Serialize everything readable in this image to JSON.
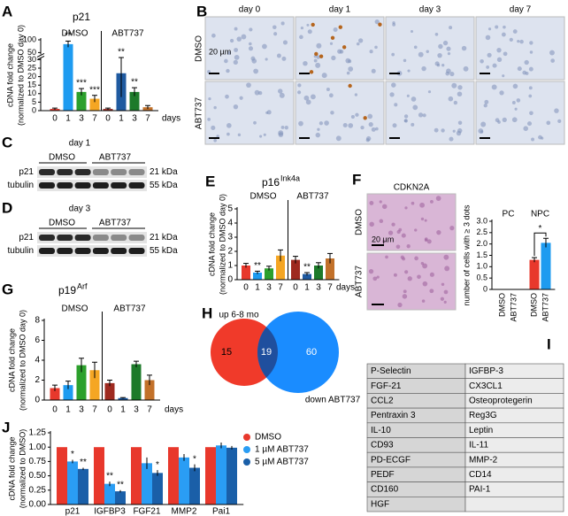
{
  "chart_data": [
    {
      "panel": "A",
      "type": "bar",
      "title": "p21",
      "ylabel": [
        "cDNA fold change",
        "(normalized to DMSO day 0)"
      ],
      "xlabel": "days",
      "ylim": [
        0,
        100
      ],
      "yticks": [
        0,
        5,
        10,
        15,
        20,
        25,
        30,
        50,
        100
      ],
      "axis_break": [
        30,
        50
      ],
      "groups": [
        {
          "name": "DMSO",
          "categories": [
            "0",
            "1",
            "3",
            "7"
          ],
          "colors": [
            "#e8382c",
            "#1e9bf0",
            "#2ca02c",
            "#f5a623"
          ],
          "values": [
            1,
            83,
            11,
            7
          ],
          "errors": [
            0.5,
            12,
            2,
            2
          ],
          "stars": [
            null,
            "**",
            "***",
            "***"
          ]
        },
        {
          "name": "ABT737",
          "categories": [
            "0",
            "1",
            "3",
            "7"
          ],
          "colors": [
            "#9e2a20",
            "#1f5aa0",
            "#1d7a2a",
            "#c2712a"
          ],
          "values": [
            1,
            22,
            11,
            2
          ],
          "errors": [
            0.5,
            14,
            2.5,
            1
          ],
          "stars": [
            null,
            "**",
            "**",
            null
          ]
        }
      ]
    },
    {
      "panel": "E",
      "type": "bar",
      "title": "p16",
      "title_sup": "Ink4a",
      "ylabel": [
        "cDNA fold change",
        "(normalized to DMSO day 0)"
      ],
      "xlabel": "days",
      "ylim": [
        0,
        5
      ],
      "yticks": [
        0,
        1,
        2,
        3,
        4,
        5
      ],
      "groups": [
        {
          "name": "DMSO",
          "categories": [
            "0",
            "1",
            "3",
            "7"
          ],
          "colors": [
            "#e8382c",
            "#1e9bf0",
            "#2ca02c",
            "#f5a623"
          ],
          "values": [
            1.0,
            0.5,
            0.8,
            1.7
          ],
          "errors": [
            0.15,
            0.1,
            0.15,
            0.4
          ],
          "stars": [
            null,
            "**",
            null,
            null
          ]
        },
        {
          "name": "ABT737",
          "categories": [
            "0",
            "1",
            "3",
            "7"
          ],
          "colors": [
            "#9e2a20",
            "#1f5aa0",
            "#1d7a2a",
            "#c2712a"
          ],
          "values": [
            1.4,
            0.4,
            1.0,
            1.5
          ],
          "errors": [
            0.25,
            0.1,
            0.2,
            0.35
          ],
          "stars": [
            null,
            "**",
            null,
            null
          ]
        }
      ]
    },
    {
      "panel": "G",
      "type": "bar",
      "title": "p19",
      "title_sup": "Arf",
      "ylabel": [
        "cDNA fold change",
        "(normalized to DMSO day 0)"
      ],
      "xlabel": "days",
      "ylim": [
        0,
        8
      ],
      "yticks": [
        0,
        2,
        4,
        6,
        8
      ],
      "groups": [
        {
          "name": "DMSO",
          "categories": [
            "0",
            "1",
            "3",
            "7"
          ],
          "colors": [
            "#e8382c",
            "#1e9bf0",
            "#2ca02c",
            "#f5a623"
          ],
          "values": [
            1.2,
            1.5,
            3.5,
            3.0
          ],
          "errors": [
            0.3,
            0.4,
            0.7,
            0.8
          ]
        },
        {
          "name": "ABT737",
          "categories": [
            "0",
            "1",
            "3",
            "7"
          ],
          "colors": [
            "#9e2a20",
            "#1f5aa0",
            "#1d7a2a",
            "#c2712a"
          ],
          "values": [
            1.7,
            0.2,
            3.6,
            2.0
          ],
          "errors": [
            0.3,
            0.05,
            0.3,
            0.5
          ]
        }
      ]
    },
    {
      "panel": "J",
      "type": "bar",
      "ylabel": [
        "cDNA fold change",
        "(normalized to DMSO)"
      ],
      "categories": [
        "p21",
        "IGFBP3",
        "FGF21",
        "MMP2",
        "Pai1"
      ],
      "ylim": [
        0,
        1.25
      ],
      "yticks": [
        {
          "value": 0,
          "label": "0.00"
        },
        0.25,
        {
          "value": 0.5,
          "label": "0.50"
        },
        0.75,
        {
          "value": 1,
          "label": "1.00"
        },
        1.25
      ],
      "series": [
        {
          "name": "DMSO",
          "color": "#e8382c",
          "values": [
            1,
            1,
            1,
            1,
            1
          ]
        },
        {
          "name": "1 µM ABT737",
          "color": "#2a9df4",
          "values": [
            0.75,
            0.36,
            0.72,
            0.82,
            1.03
          ],
          "errors": [
            0.03,
            0.04,
            0.1,
            0.06,
            0.05
          ],
          "stars": [
            "*",
            "**",
            null,
            null,
            null
          ]
        },
        {
          "name": "5 µM ABT737",
          "color": "#1a5fa8",
          "values": [
            0.62,
            0.23,
            0.55,
            0.64,
            0.99
          ],
          "errors": [
            0.02,
            0.02,
            0.05,
            0.06,
            0.03
          ],
          "stars": [
            "**",
            "**",
            "*",
            "*",
            null
          ]
        }
      ]
    },
    {
      "type": "bar",
      "ylabel": [
        "number of cells with ≥ 3 dots"
      ],
      "ylim": [
        0,
        3
      ],
      "yticks": [
        0,
        0.5,
        {
          "value": 1,
          "label": "1.0"
        },
        1.5,
        {
          "value": 2,
          "label": "2.0"
        },
        2.5,
        {
          "value": 3,
          "label": "3.0"
        }
      ],
      "groups": [
        {
          "name": "PC",
          "categories": [
            "DMSO",
            "ABT737"
          ],
          "colors": [
            "#e8382c",
            "#1e9bf0"
          ],
          "values": [
            0,
            0
          ]
        },
        {
          "name": "NPC",
          "categories": [
            "DMSO",
            "ABT737"
          ],
          "colors": [
            "#e8382c",
            "#1e9bf0"
          ],
          "values": [
            1.3,
            2.05
          ],
          "errors": [
            0.1,
            0.2
          ],
          "bracket_star": "*"
        }
      ]
    }
  ],
  "panels": {
    "B": {
      "letter": "B",
      "columns": [
        "day 0",
        "day 1",
        "day 3",
        "day 7"
      ],
      "rows": [
        "DMSO",
        "ABT737"
      ],
      "scale_bar": "20 µm"
    },
    "C": {
      "letter": "C",
      "title": "day 1",
      "lanes": [
        "DMSO",
        "ABT737"
      ],
      "bands": [
        "p21",
        "tubulin"
      ],
      "sizes": [
        "21 kDa",
        "55 kDa"
      ]
    },
    "D": {
      "letter": "D",
      "title": "day 3",
      "lanes": [
        "DMSO",
        "ABT737"
      ],
      "bands": [
        "p21",
        "tubulin"
      ],
      "sizes": [
        "21 kDa",
        "55 kDa"
      ]
    },
    "F": {
      "letter": "F",
      "title": "CDKN2A",
      "rows": [
        "DMSO",
        "ABT737"
      ],
      "scale_bar": "20 µm"
    },
    "H": {
      "letter": "H",
      "left_label": "up 6-8 mo",
      "right_label": "down ABT737",
      "counts": [
        15,
        19,
        60
      ]
    },
    "I": {
      "letter": "I",
      "rows": [
        [
          "P-Selectin",
          "IGFBP-3"
        ],
        [
          "FGF-21",
          "CX3CL1"
        ],
        [
          "CCL2",
          "Osteoprotegerin"
        ],
        [
          "Pentraxin 3",
          "Reg3G"
        ],
        [
          "IL-10",
          "Leptin"
        ],
        [
          "CD93",
          "IL-11"
        ],
        [
          "PD-ECGF",
          "MMP-2"
        ],
        [
          "PEDF",
          "CD14"
        ],
        [
          "CD160",
          "PAI-1"
        ],
        [
          "HGF",
          null
        ]
      ]
    }
  }
}
